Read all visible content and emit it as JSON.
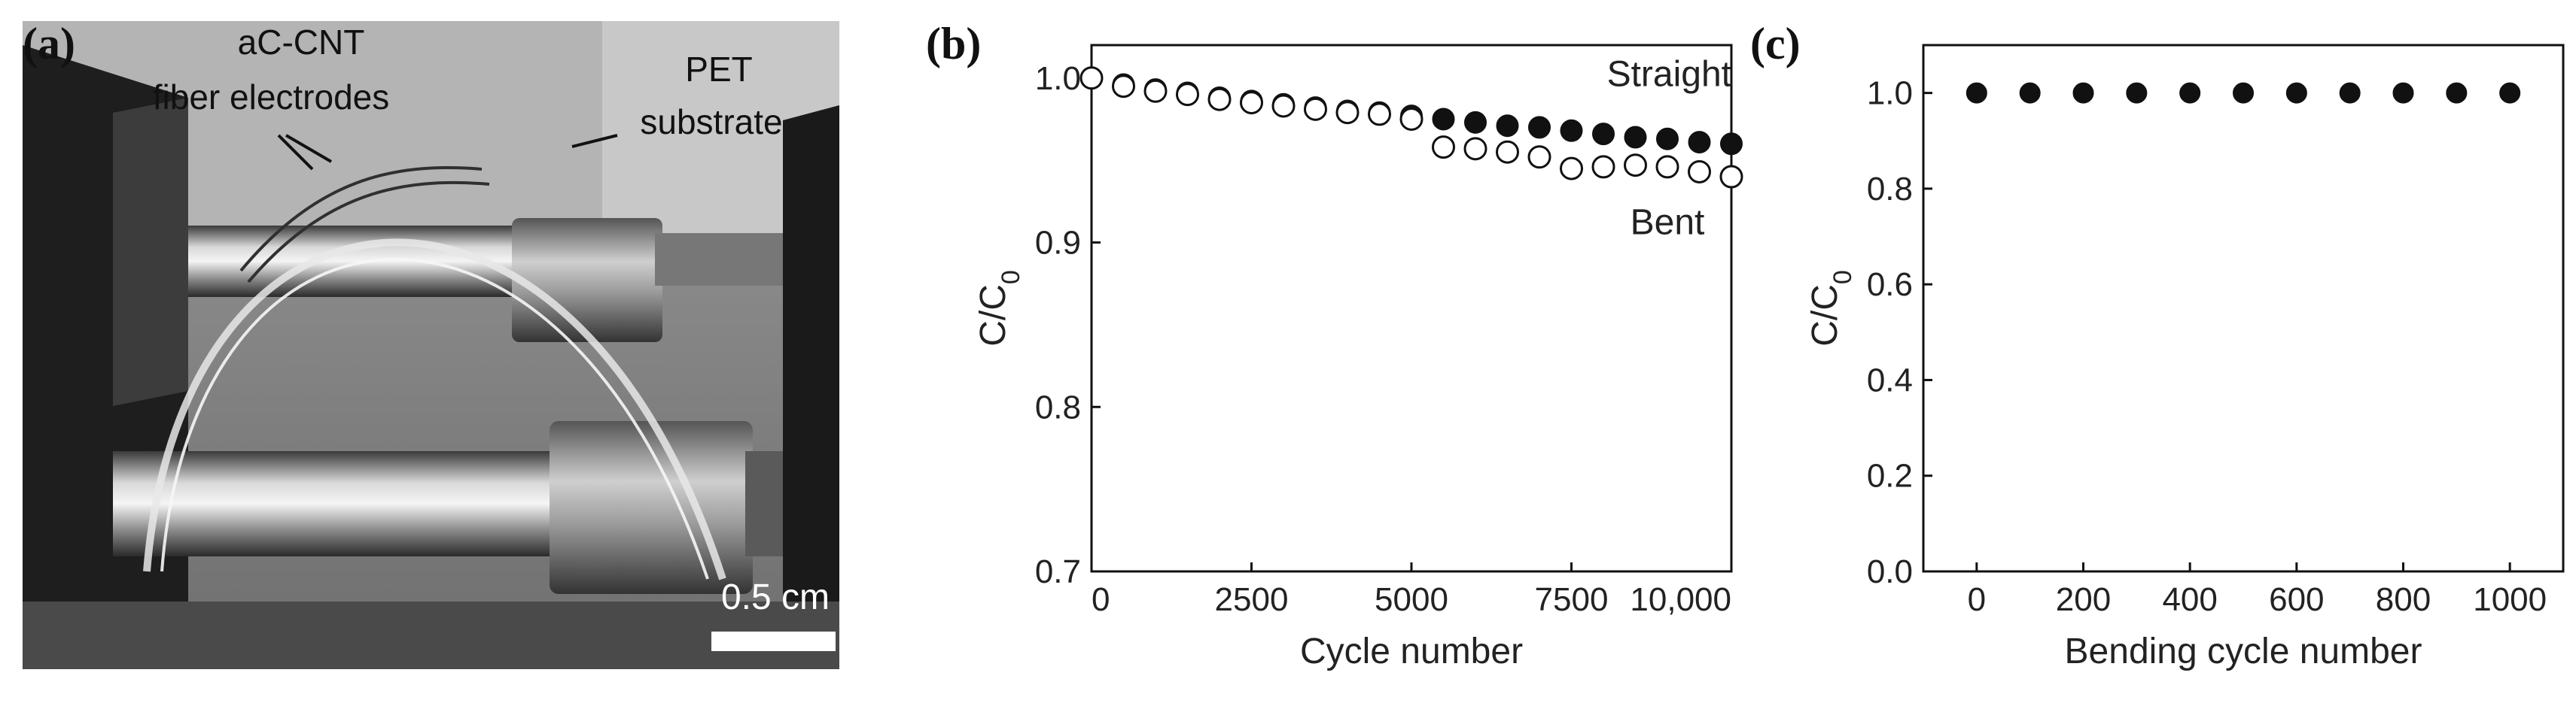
{
  "panels": {
    "a": {
      "label": "(a)",
      "annotation_1_line1": "aC-CNT",
      "annotation_1_line2": "fiber electrodes",
      "annotation_2_line1": "PET",
      "annotation_2_line2": "substrate",
      "scale_bar": "0.5 cm"
    },
    "b": {
      "label": "(b)"
    },
    "c": {
      "label": "(c)"
    }
  },
  "chart_data": [
    {
      "type": "scatter",
      "panel": "b",
      "xlabel": "Cycle number",
      "ylabel": "C/C",
      "ylabel_sub": "0",
      "xlim": [
        0,
        10000
      ],
      "ylim": [
        0.7,
        1.02
      ],
      "xticks": [
        {
          "value": 0,
          "label": "0"
        },
        {
          "value": 2500,
          "label": "2500"
        },
        {
          "value": 5000,
          "label": "5000"
        },
        {
          "value": 7500,
          "label": "7500"
        },
        {
          "value": 10000,
          "label": "10,000"
        }
      ],
      "yticks": [
        {
          "value": 0.7,
          "label": "0.7"
        },
        {
          "value": 0.8,
          "label": "0.8"
        },
        {
          "value": 0.9,
          "label": "0.9"
        },
        {
          "value": 1.0,
          "label": "1.0"
        }
      ],
      "annotations": [
        {
          "text": "Straight",
          "x": 10000,
          "y": 0.995,
          "anchor": "end"
        },
        {
          "text": "Bent",
          "x": 9000,
          "y": 0.905,
          "anchor": "middle"
        }
      ],
      "series": [
        {
          "name": "Straight",
          "marker": "filled",
          "x": [
            0,
            500,
            1000,
            1500,
            2000,
            2500,
            3000,
            3500,
            4000,
            4500,
            5000,
            5500,
            6000,
            6500,
            7000,
            7500,
            8000,
            8500,
            9000,
            9500,
            10000
          ],
          "y": [
            1.0,
            0.996,
            0.993,
            0.991,
            0.988,
            0.986,
            0.984,
            0.982,
            0.98,
            0.979,
            0.977,
            0.975,
            0.973,
            0.971,
            0.97,
            0.968,
            0.966,
            0.964,
            0.963,
            0.961,
            0.96
          ]
        },
        {
          "name": "Bent",
          "marker": "open",
          "x": [
            0,
            500,
            1000,
            1500,
            2000,
            2500,
            3000,
            3500,
            4000,
            4500,
            5000,
            5500,
            6000,
            6500,
            7000,
            7500,
            8000,
            8500,
            9000,
            9500,
            10000
          ],
          "y": [
            1.0,
            0.995,
            0.992,
            0.99,
            0.987,
            0.985,
            0.983,
            0.981,
            0.979,
            0.978,
            0.975,
            0.958,
            0.957,
            0.955,
            0.952,
            0.945,
            0.946,
            0.947,
            0.946,
            0.943,
            0.94
          ]
        }
      ]
    },
    {
      "type": "scatter",
      "panel": "c",
      "xlabel": "Bending cycle number",
      "ylabel": "C/C",
      "ylabel_sub": "0",
      "xlim": [
        -100,
        1100
      ],
      "ylim": [
        0.0,
        1.1
      ],
      "xticks": [
        {
          "value": 0,
          "label": "0"
        },
        {
          "value": 200,
          "label": "200"
        },
        {
          "value": 400,
          "label": "400"
        },
        {
          "value": 600,
          "label": "600"
        },
        {
          "value": 800,
          "label": "800"
        },
        {
          "value": 1000,
          "label": "1000"
        }
      ],
      "yticks": [
        {
          "value": 0.0,
          "label": "0.0"
        },
        {
          "value": 0.2,
          "label": "0.2"
        },
        {
          "value": 0.4,
          "label": "0.4"
        },
        {
          "value": 0.6,
          "label": "0.6"
        },
        {
          "value": 0.8,
          "label": "0.8"
        },
        {
          "value": 1.0,
          "label": "1.0"
        }
      ],
      "series": [
        {
          "name": "Bending",
          "marker": "filled",
          "x": [
            0,
            100,
            200,
            300,
            400,
            500,
            600,
            700,
            800,
            900,
            1000
          ],
          "y": [
            1.0,
            1.0,
            1.0,
            1.0,
            1.0,
            1.0,
            1.0,
            1.0,
            1.0,
            1.0,
            1.0
          ]
        }
      ]
    }
  ]
}
